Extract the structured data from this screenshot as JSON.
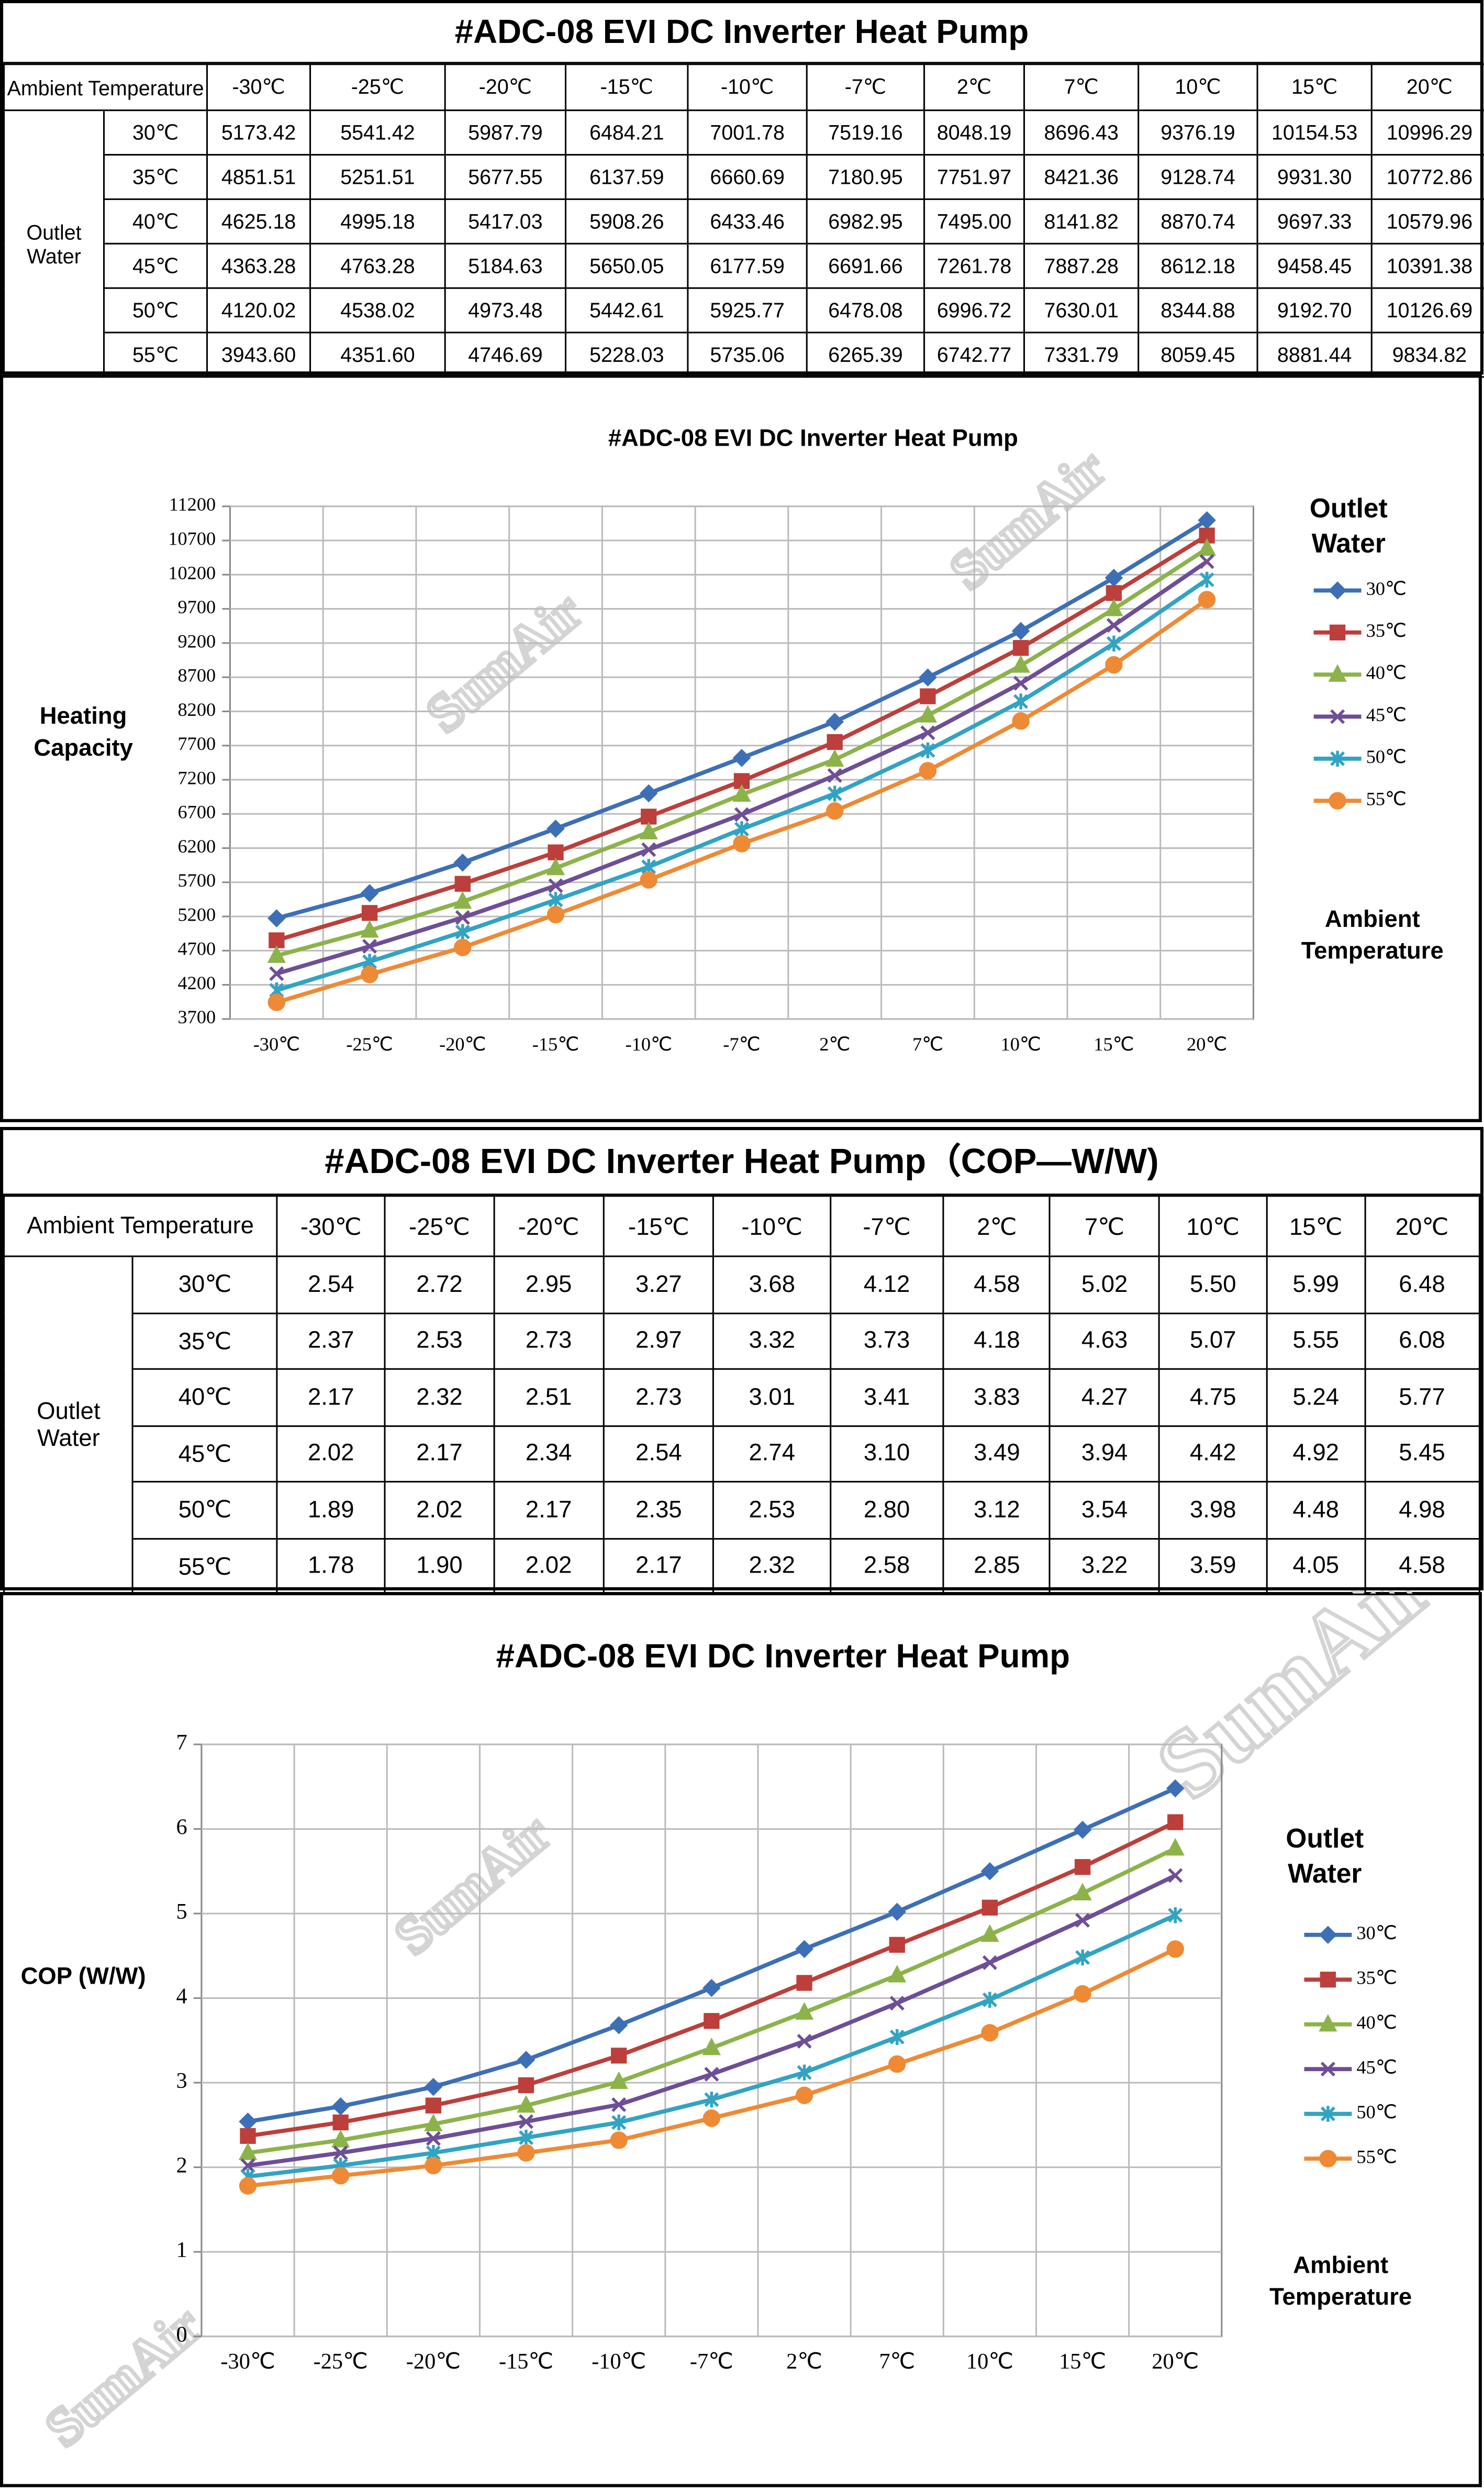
{
  "watermark": "SumAir",
  "tables": [
    {
      "title": "#ADC-08 EVI DC Inverter Heat Pump",
      "corner": "Ambient Temperature",
      "group_label": "Outlet Water",
      "columns": [
        "-30℃",
        "-25℃",
        "-20℃",
        "-15℃",
        "-10℃",
        "-7℃",
        "2℃",
        "7℃",
        "10℃",
        "15℃",
        "20℃"
      ],
      "rows": [
        {
          "label": "30℃",
          "cells": [
            "5173.42",
            "5541.42",
            "5987.79",
            "6484.21",
            "7001.78",
            "7519.16",
            "8048.19",
            "8696.43",
            "9376.19",
            "10154.53",
            "10996.29"
          ]
        },
        {
          "label": "35℃",
          "cells": [
            "4851.51",
            "5251.51",
            "5677.55",
            "6137.59",
            "6660.69",
            "7180.95",
            "7751.97",
            "8421.36",
            "9128.74",
            "9931.30",
            "10772.86"
          ]
        },
        {
          "label": "40℃",
          "cells": [
            "4625.18",
            "4995.18",
            "5417.03",
            "5908.26",
            "6433.46",
            "6982.95",
            "7495.00",
            "8141.82",
            "8870.74",
            "9697.33",
            "10579.96"
          ]
        },
        {
          "label": "45℃",
          "cells": [
            "4363.28",
            "4763.28",
            "5184.63",
            "5650.05",
            "6177.59",
            "6691.66",
            "7261.78",
            "7887.28",
            "8612.18",
            "9458.45",
            "10391.38"
          ]
        },
        {
          "label": "50℃",
          "cells": [
            "4120.02",
            "4538.02",
            "4973.48",
            "5442.61",
            "5925.77",
            "6478.08",
            "6996.72",
            "7630.01",
            "8344.88",
            "9192.70",
            "10126.69"
          ]
        },
        {
          "label": "55℃",
          "cells": [
            "3943.60",
            "4351.60",
            "4746.69",
            "5228.03",
            "5735.06",
            "6265.39",
            "6742.77",
            "7331.79",
            "8059.45",
            "8881.44",
            "9834.82"
          ]
        }
      ]
    },
    {
      "title": "#ADC-08 EVI DC Inverter Heat Pump（COP—W/W)",
      "corner": "Ambient Temperature",
      "group_label": "Outlet Water",
      "columns": [
        "-30℃",
        "-25℃",
        "-20℃",
        "-15℃",
        "-10℃",
        "-7℃",
        "2℃",
        "7℃",
        "10℃",
        "15℃",
        "20℃"
      ],
      "rows": [
        {
          "label": "30℃",
          "cells": [
            "2.54",
            "2.72",
            "2.95",
            "3.27",
            "3.68",
            "4.12",
            "4.58",
            "5.02",
            "5.50",
            "5.99",
            "6.48"
          ]
        },
        {
          "label": "35℃",
          "cells": [
            "2.37",
            "2.53",
            "2.73",
            "2.97",
            "3.32",
            "3.73",
            "4.18",
            "4.63",
            "5.07",
            "5.55",
            "6.08"
          ]
        },
        {
          "label": "40℃",
          "cells": [
            "2.17",
            "2.32",
            "2.51",
            "2.73",
            "3.01",
            "3.41",
            "3.83",
            "4.27",
            "4.75",
            "5.24",
            "5.77"
          ]
        },
        {
          "label": "45℃",
          "cells": [
            "2.02",
            "2.17",
            "2.34",
            "2.54",
            "2.74",
            "3.10",
            "3.49",
            "3.94",
            "4.42",
            "4.92",
            "5.45"
          ]
        },
        {
          "label": "50℃",
          "cells": [
            "1.89",
            "2.02",
            "2.17",
            "2.35",
            "2.53",
            "2.80",
            "3.12",
            "3.54",
            "3.98",
            "4.48",
            "4.98"
          ]
        },
        {
          "label": "55℃",
          "cells": [
            "1.78",
            "1.90",
            "2.02",
            "2.17",
            "2.32",
            "2.58",
            "2.85",
            "3.22",
            "3.59",
            "4.05",
            "4.58"
          ]
        }
      ]
    }
  ],
  "chart_data": [
    {
      "type": "line",
      "title": "#ADC-08 EVI DC Inverter Heat Pump",
      "y_label": "Heating Capacity",
      "x_label": "Ambient Temperature",
      "legend_title": "Outlet Water",
      "categories": [
        "-30℃",
        "-25℃",
        "-20℃",
        "-15℃",
        "-10℃",
        "-7℃",
        "2℃",
        "7℃",
        "10℃",
        "15℃",
        "20℃"
      ],
      "ylim": [
        3700,
        11200
      ],
      "yticks": [
        3700,
        4200,
        4700,
        5200,
        5700,
        6200,
        6700,
        7200,
        7700,
        8200,
        8700,
        9200,
        9700,
        10200,
        10700,
        11200
      ],
      "grid": true,
      "series": [
        {
          "name": "30℃",
          "color": "#3d6fb6",
          "values": [
            5173.42,
            5541.42,
            5987.79,
            6484.21,
            7001.78,
            7519.16,
            8048.19,
            8696.43,
            9376.19,
            10154.53,
            10996.29
          ]
        },
        {
          "name": "35℃",
          "color": "#bc3f3b",
          "values": [
            4851.51,
            5251.51,
            5677.55,
            6137.59,
            6660.69,
            7180.95,
            7751.97,
            8421.36,
            9128.74,
            9931.3,
            10772.86
          ]
        },
        {
          "name": "40℃",
          "color": "#8cb34a",
          "values": [
            4625.18,
            4995.18,
            5417.03,
            5908.26,
            6433.46,
            6982.95,
            7495.0,
            8141.82,
            8870.74,
            9697.33,
            10579.96
          ]
        },
        {
          "name": "45℃",
          "color": "#6e4e96",
          "values": [
            4363.28,
            4763.28,
            5184.63,
            5650.05,
            6177.59,
            6691.66,
            7261.78,
            7887.28,
            8612.18,
            9458.45,
            10391.38
          ]
        },
        {
          "name": "50℃",
          "color": "#32a3c2",
          "values": [
            4120.02,
            4538.02,
            4973.48,
            5442.61,
            5925.77,
            6478.08,
            6996.72,
            7630.01,
            8344.88,
            9192.7,
            10126.69
          ]
        },
        {
          "name": "55℃",
          "color": "#ee8a35",
          "values": [
            3943.6,
            4351.6,
            4746.69,
            5228.03,
            5735.06,
            6265.39,
            6742.77,
            7331.79,
            8059.45,
            8881.44,
            9834.82
          ]
        }
      ]
    },
    {
      "type": "line",
      "title": "#ADC-08 EVI DC Inverter Heat Pump",
      "y_label": "COP (W/W)",
      "x_label": "Ambient Temperature",
      "legend_title": "Outlet Water",
      "categories": [
        "-30℃",
        "-25℃",
        "-20℃",
        "-15℃",
        "-10℃",
        "-7℃",
        "2℃",
        "7℃",
        "10℃",
        "15℃",
        "20℃"
      ],
      "ylim": [
        0,
        7
      ],
      "yticks": [
        0,
        1,
        2,
        3,
        4,
        5,
        6,
        7
      ],
      "grid": true,
      "series": [
        {
          "name": "30℃",
          "color": "#3d6fb6",
          "values": [
            2.54,
            2.72,
            2.95,
            3.27,
            3.68,
            4.12,
            4.58,
            5.02,
            5.5,
            5.99,
            6.48
          ]
        },
        {
          "name": "35℃",
          "color": "#bc3f3b",
          "values": [
            2.37,
            2.53,
            2.73,
            2.97,
            3.32,
            3.73,
            4.18,
            4.63,
            5.07,
            5.55,
            6.08
          ]
        },
        {
          "name": "40℃",
          "color": "#8cb34a",
          "values": [
            2.17,
            2.32,
            2.51,
            2.73,
            3.01,
            3.41,
            3.83,
            4.27,
            4.75,
            5.24,
            5.77
          ]
        },
        {
          "name": "45℃",
          "color": "#6e4e96",
          "values": [
            2.02,
            2.17,
            2.34,
            2.54,
            2.74,
            3.1,
            3.49,
            3.94,
            4.42,
            4.92,
            5.45
          ]
        },
        {
          "name": "50℃",
          "color": "#32a3c2",
          "values": [
            1.89,
            2.02,
            2.17,
            2.35,
            2.53,
            2.8,
            3.12,
            3.54,
            3.98,
            4.48,
            4.98
          ]
        },
        {
          "name": "55℃",
          "color": "#ee8a35",
          "values": [
            1.78,
            1.9,
            2.02,
            2.17,
            2.32,
            2.58,
            2.85,
            3.22,
            3.59,
            4.05,
            4.58
          ]
        }
      ]
    }
  ]
}
